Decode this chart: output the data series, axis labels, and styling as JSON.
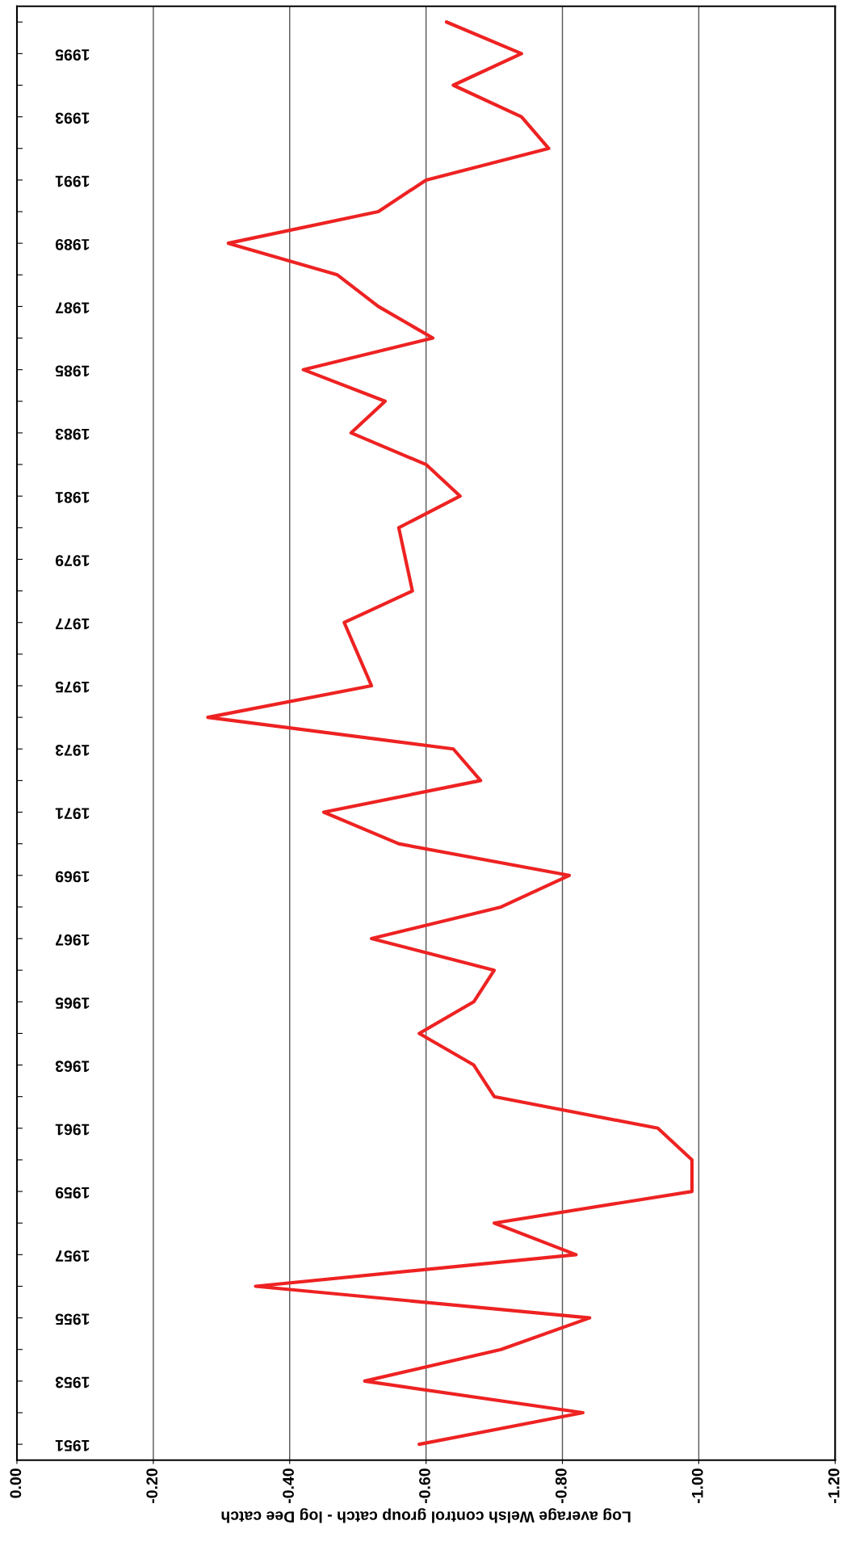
{
  "chart_data": {
    "type": "line",
    "orientation": "horizontal",
    "xlabel": "Log average Welsh control group catch - log Dee catch",
    "categories": [
      null,
      "1995",
      null,
      "1993",
      null,
      "1991",
      null,
      "1989",
      null,
      "1987",
      null,
      "1985",
      null,
      "1983",
      null,
      "1981",
      null,
      "1979",
      null,
      "1977",
      null,
      "1975",
      null,
      "1973",
      null,
      "1971",
      null,
      "1969",
      null,
      "1967",
      null,
      "1965",
      null,
      "1963",
      null,
      "1961",
      null,
      "1959",
      null,
      "1957",
      null,
      "1955",
      null,
      "1953",
      null,
      "1951"
    ],
    "series": [
      {
        "color": "#ee2222",
        "values": [
          -0.63,
          -0.74,
          -0.64,
          -0.74,
          -0.78,
          -0.6,
          -0.53,
          -0.31,
          -0.47,
          -0.53,
          -0.61,
          -0.42,
          -0.54,
          -0.49,
          -0.6,
          -0.65,
          -0.56,
          -0.57,
          -0.58,
          -0.48,
          -0.5,
          -0.52,
          -0.28,
          -0.64,
          -0.68,
          -0.45,
          -0.56,
          -0.81,
          -0.71,
          -0.52,
          -0.7,
          -0.67,
          -0.59,
          -0.67,
          -0.7,
          -0.94,
          -0.99,
          -0.99,
          -0.7,
          -0.82,
          -0.35,
          -0.84,
          -0.71,
          -0.51,
          -0.83,
          -0.59
        ]
      }
    ],
    "xlim": [
      0,
      -1.2
    ],
    "xticks": [
      {
        "value": 0,
        "label": "0.00"
      },
      {
        "value": -0.2,
        "label": "-0.20"
      },
      {
        "value": -0.4,
        "label": "-0.40"
      },
      {
        "value": -0.6,
        "label": "-0.60"
      },
      {
        "value": -0.8,
        "label": "-0.80"
      },
      {
        "value": -1.0,
        "label": "-1.00"
      },
      {
        "value": -1.2,
        "label": "-1.20"
      }
    ],
    "grid": "x",
    "legend": false,
    "marker": "none",
    "line_style": "solid"
  }
}
